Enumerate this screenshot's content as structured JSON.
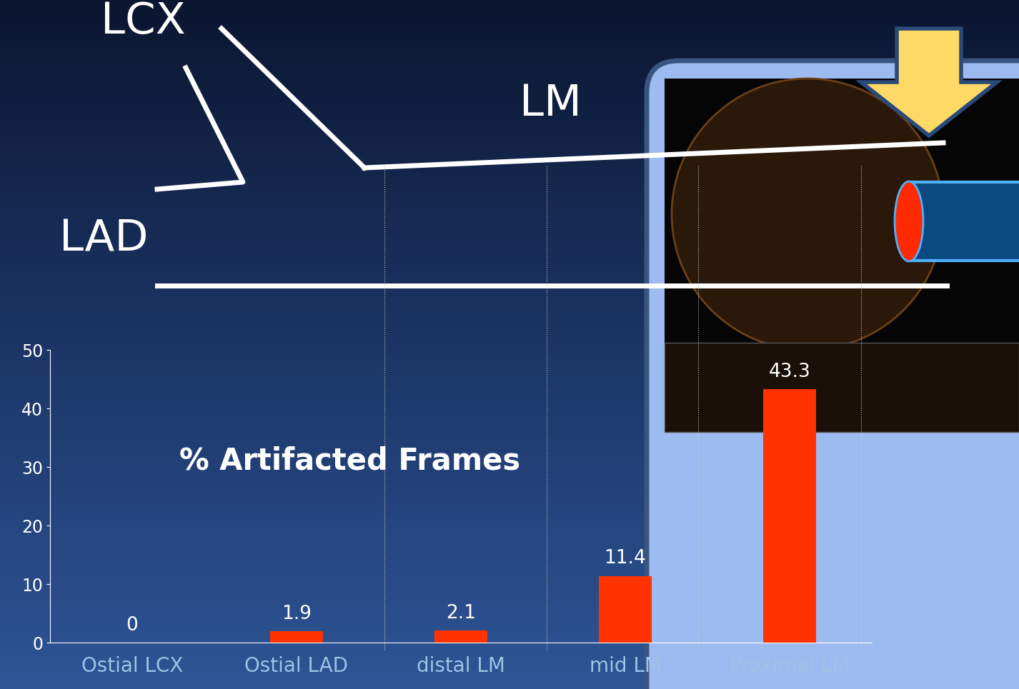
{
  "chart_data": {
    "type": "bar",
    "title": "% Artifacted Frames",
    "categories": [
      "Ostial LCX",
      "Ostial LAD",
      "distal LM",
      "mid LM",
      "Proximal LM"
    ],
    "values": [
      0,
      1.9,
      2.1,
      11.4,
      43.3
    ],
    "color": "#ff3300",
    "ylim": [
      0,
      50
    ],
    "yticks": [
      0,
      10,
      20,
      30,
      40,
      50
    ],
    "grid": false,
    "data_labels": true
  },
  "diagram": {
    "labels": [
      "LCX",
      "LM",
      "LAD"
    ]
  }
}
